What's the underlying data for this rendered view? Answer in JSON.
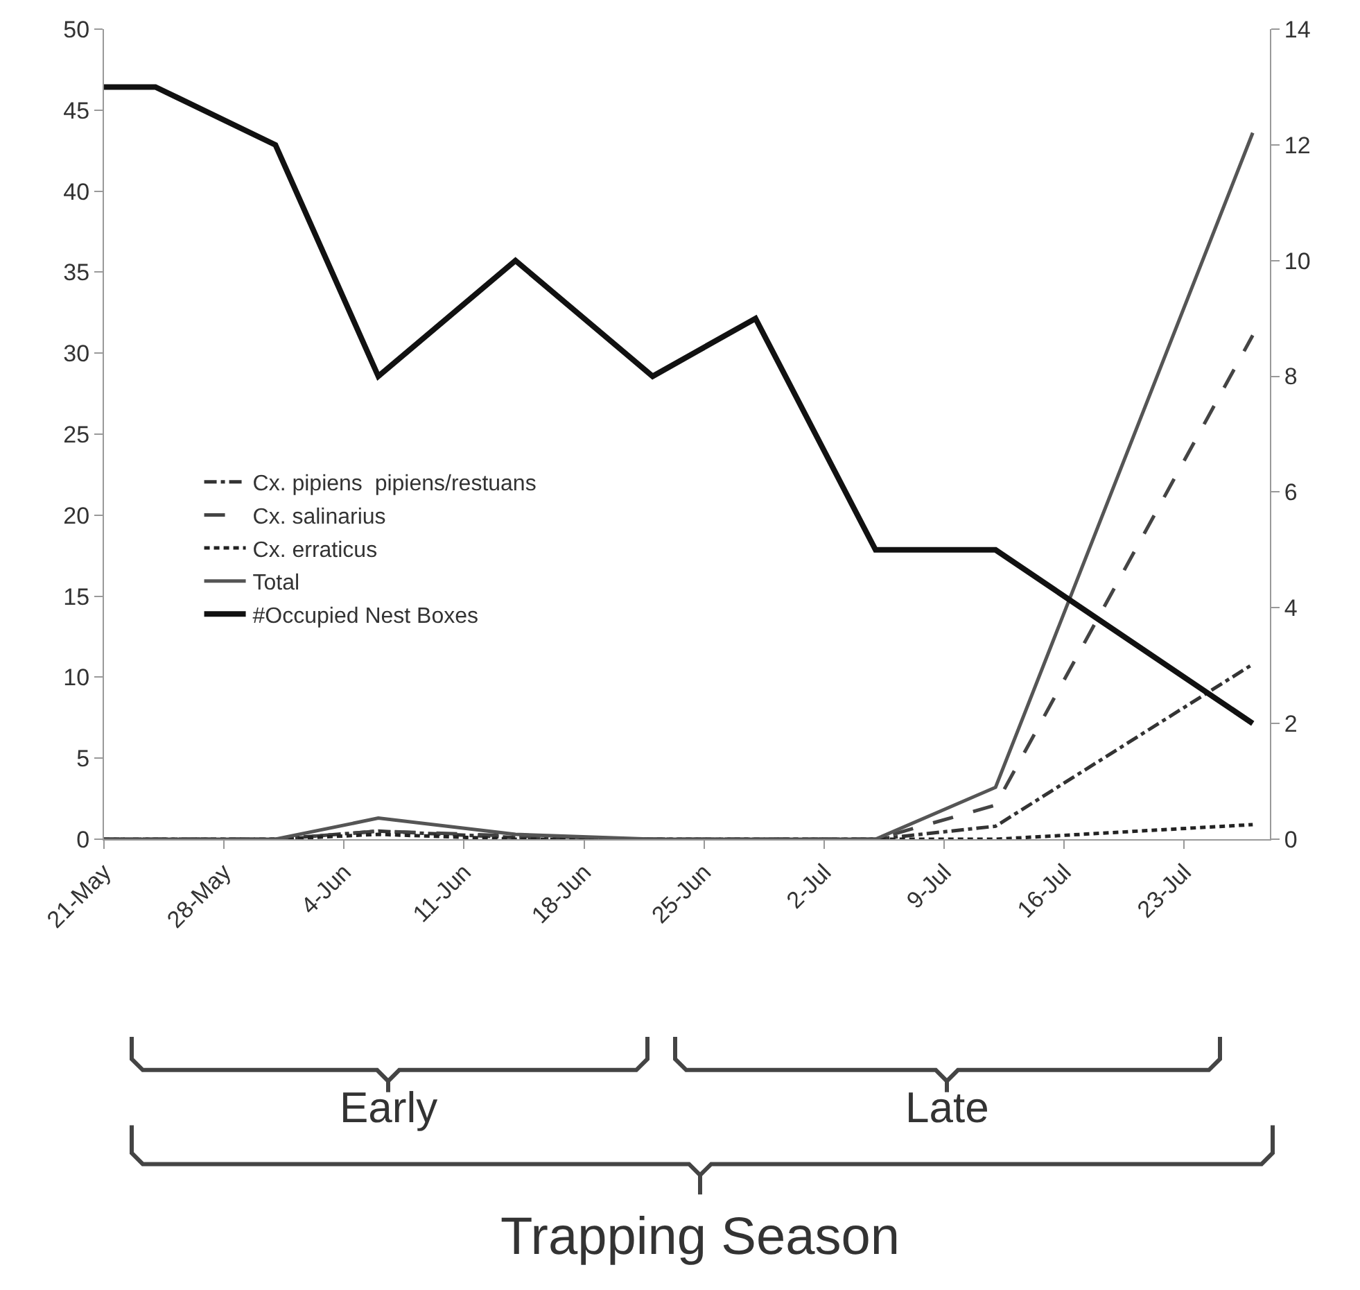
{
  "chart_data": {
    "type": "line",
    "x": [
      "--05-21",
      "--05-24",
      "--05-31",
      "--06-06",
      "--06-14",
      "--06-22",
      "--06-28",
      "--07-05",
      "--07-12",
      "--07-27"
    ],
    "series": [
      {
        "name": "Cx. pipiens  pipiens/restuans",
        "color": "#333333",
        "line_style": "dashdot",
        "values": [
          0,
          0,
          0,
          0.5,
          0.1,
          0,
          0,
          0,
          0.8,
          10.8
        ]
      },
      {
        "name": "Cx. salinarius",
        "color": "#444444",
        "line_style": "dashed",
        "values": [
          0,
          0,
          0,
          0.5,
          0.2,
          0,
          0,
          0,
          2.1,
          31.1
        ]
      },
      {
        "name": "Cx. erraticus",
        "color": "#222222",
        "line_style": "dotted",
        "values": [
          0,
          0,
          0,
          0.3,
          0,
          0,
          0,
          0,
          0,
          0.9
        ]
      },
      {
        "name": "Total",
        "color": "#555555",
        "line_style": "solid",
        "values": [
          0,
          0,
          0,
          1.3,
          0.3,
          0,
          0,
          0,
          3.2,
          43.6
        ]
      },
      {
        "name": "#Occupied Nest Boxes",
        "color": "#111111",
        "line_style": "solid",
        "axis": "y2",
        "values": [
          13,
          13,
          12,
          8,
          10,
          8,
          9,
          5,
          5,
          2
        ]
      }
    ],
    "xlim": [
      "--05-21",
      "--07-28"
    ],
    "xticks": [
      {
        "value": "--05-21",
        "label": "21-May"
      },
      {
        "value": "--05-28",
        "label": "28-May"
      },
      {
        "value": "--06-04",
        "label": "4-Jun"
      },
      {
        "value": "--06-11",
        "label": "11-Jun"
      },
      {
        "value": "--06-18",
        "label": "18-Jun"
      },
      {
        "value": "--06-25",
        "label": "25-Jun"
      },
      {
        "value": "--07-02",
        "label": "2-Jul"
      },
      {
        "value": "--07-09",
        "label": "9-Jul"
      },
      {
        "value": "--07-16",
        "label": "16-Jul"
      },
      {
        "value": "--07-23",
        "label": "23-Jul"
      }
    ],
    "ylim": [
      0,
      50
    ],
    "yticks": [
      0,
      5,
      10,
      15,
      20,
      25,
      30,
      35,
      40,
      45,
      50
    ],
    "y2lim": [
      0,
      14
    ],
    "y2ticks": [
      0,
      2,
      4,
      6,
      8,
      10,
      12,
      14
    ],
    "legend": "left",
    "marker": "none",
    "annotations": [
      "Early",
      "Late",
      "Trapping Season"
    ]
  }
}
